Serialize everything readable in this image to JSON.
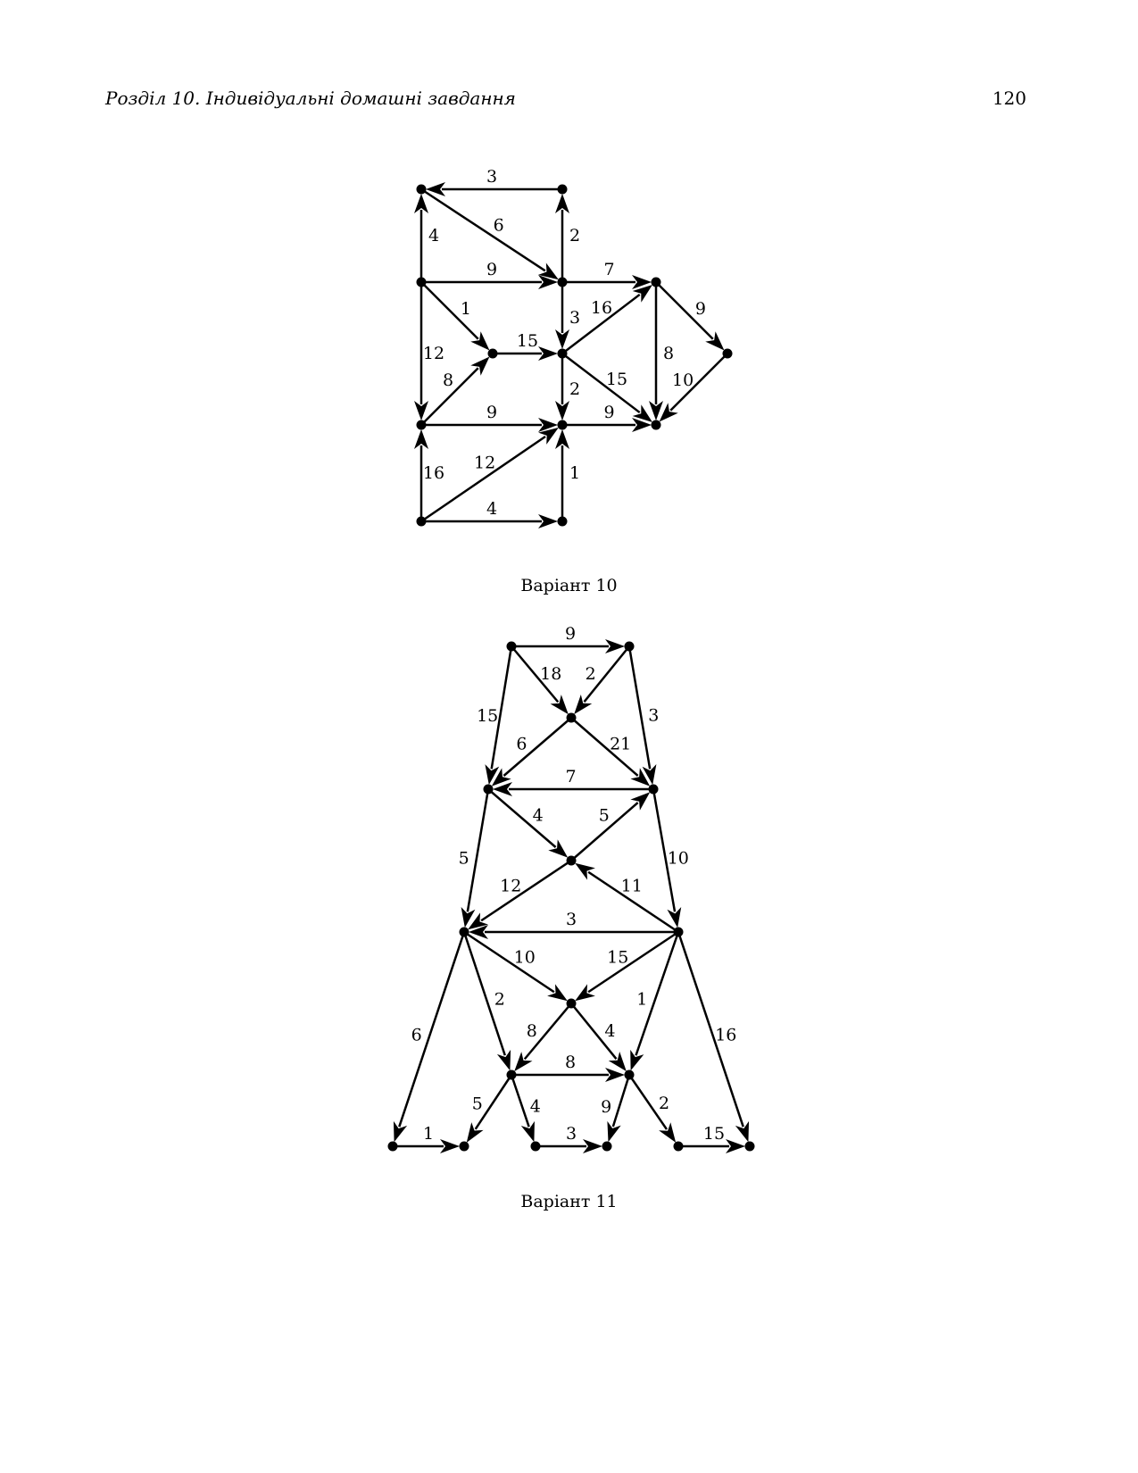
{
  "header": {
    "running_head": "Розділ 10.  Індивідуальні домашні завдання",
    "page_number": "120"
  },
  "figures": [
    {
      "caption": "Варіант 10",
      "nodes": [
        "A",
        "B",
        "C",
        "D",
        "E",
        "F",
        "G",
        "H",
        "I",
        "J",
        "K",
        "L",
        "M"
      ],
      "edges": [
        {
          "from": "B",
          "to": "A",
          "label": "3"
        },
        {
          "from": "A",
          "to": "D",
          "label": "6"
        },
        {
          "from": "D",
          "to": "B",
          "label": "2"
        },
        {
          "from": "C",
          "to": "A",
          "label": "4"
        },
        {
          "from": "C",
          "to": "D",
          "label": "9"
        },
        {
          "from": "D",
          "to": "E",
          "label": "7"
        },
        {
          "from": "C",
          "to": "F",
          "label": "1"
        },
        {
          "from": "D",
          "to": "G",
          "label": "3"
        },
        {
          "from": "G",
          "to": "E",
          "label": "16"
        },
        {
          "from": "E",
          "to": "H",
          "label": "9"
        },
        {
          "from": "E",
          "to": "J",
          "label": "8"
        },
        {
          "from": "F",
          "to": "G",
          "label": "15"
        },
        {
          "from": "C",
          "to": "I",
          "label": "12"
        },
        {
          "from": "I",
          "to": "F",
          "label": "8"
        },
        {
          "from": "G",
          "to": "K",
          "label": "2"
        },
        {
          "from": "G",
          "to": "J",
          "label": "15"
        },
        {
          "from": "H",
          "to": "J",
          "label": "10"
        },
        {
          "from": "I",
          "to": "K",
          "label": "9"
        },
        {
          "from": "K",
          "to": "J",
          "label": "9"
        },
        {
          "from": "L",
          "to": "I",
          "label": "16"
        },
        {
          "from": "L",
          "to": "K",
          "label": "12"
        },
        {
          "from": "M",
          "to": "K",
          "label": "1"
        },
        {
          "from": "L",
          "to": "M",
          "label": "4"
        }
      ]
    },
    {
      "caption": "Варіант 11",
      "nodes": [
        "A",
        "B",
        "C",
        "D",
        "E",
        "F",
        "G",
        "H",
        "I",
        "J",
        "K",
        "L",
        "M",
        "N",
        "O",
        "P",
        "Q"
      ],
      "edges": [
        {
          "from": "A",
          "to": "B",
          "label": "9"
        },
        {
          "from": "A",
          "to": "C",
          "label": "18"
        },
        {
          "from": "B",
          "to": "C",
          "label": "2"
        },
        {
          "from": "A",
          "to": "D",
          "label": "15"
        },
        {
          "from": "B",
          "to": "E",
          "label": "3"
        },
        {
          "from": "C",
          "to": "D",
          "label": "6"
        },
        {
          "from": "C",
          "to": "E",
          "label": "21"
        },
        {
          "from": "E",
          "to": "D",
          "label": "7"
        },
        {
          "from": "D",
          "to": "F",
          "label": "4"
        },
        {
          "from": "F",
          "to": "E",
          "label": "5"
        },
        {
          "from": "D",
          "to": "G",
          "label": "5"
        },
        {
          "from": "E",
          "to": "H",
          "label": "10"
        },
        {
          "from": "F",
          "to": "G",
          "label": "12"
        },
        {
          "from": "H",
          "to": "F",
          "label": "11"
        },
        {
          "from": "H",
          "to": "G",
          "label": "3"
        },
        {
          "from": "G",
          "to": "I",
          "label": "10"
        },
        {
          "from": "H",
          "to": "I",
          "label": "15"
        },
        {
          "from": "G",
          "to": "J",
          "label": "2"
        },
        {
          "from": "H",
          "to": "K",
          "label": "1"
        },
        {
          "from": "G",
          "to": "L",
          "label": "6"
        },
        {
          "from": "H",
          "to": "Q",
          "label": "16"
        },
        {
          "from": "I",
          "to": "J",
          "label": "8"
        },
        {
          "from": "I",
          "to": "K",
          "label": "4"
        },
        {
          "from": "J",
          "to": "K",
          "label": "8"
        },
        {
          "from": "J",
          "to": "M",
          "label": "5"
        },
        {
          "from": "J",
          "to": "N",
          "label": "4"
        },
        {
          "from": "K",
          "to": "O",
          "label": "9"
        },
        {
          "from": "K",
          "to": "P",
          "label": "2"
        },
        {
          "from": "L",
          "to": "M",
          "label": "1"
        },
        {
          "from": "N",
          "to": "O",
          "label": "3"
        },
        {
          "from": "P",
          "to": "Q",
          "label": "15"
        }
      ]
    }
  ]
}
